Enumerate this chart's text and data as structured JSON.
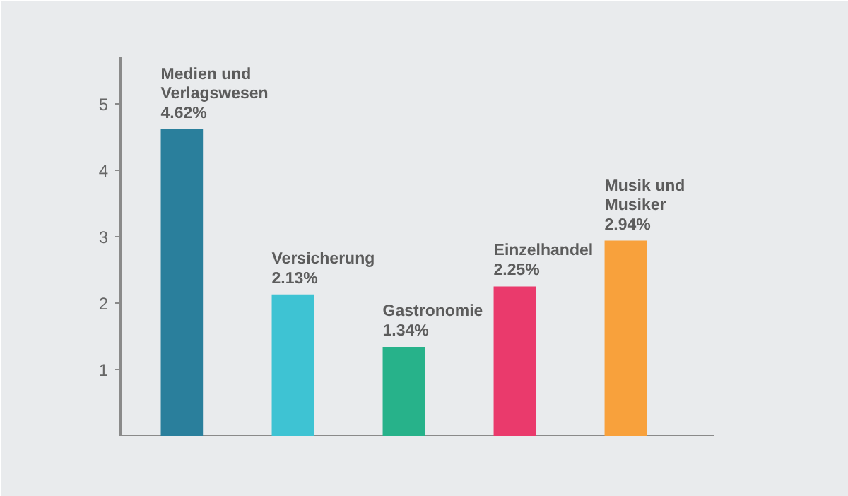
{
  "chart_data": {
    "type": "bar",
    "categories": [
      "Medien und Verlagswesen",
      "Versicherung",
      "Gastronomie",
      "Einzelhandel",
      "Musik und Musiker"
    ],
    "values": [
      4.62,
      2.13,
      1.34,
      2.25,
      2.94
    ],
    "value_labels": [
      "4.62%",
      "2.13%",
      "1.34%",
      "2.25%",
      "2.94%"
    ],
    "colors": [
      "#2a7f9c",
      "#3ec3d3",
      "#27b28a",
      "#ea3a6c",
      "#f8a13c"
    ],
    "ylim": [
      0,
      5.7
    ],
    "yticks": [
      1,
      2,
      3,
      4,
      5
    ],
    "grid": false
  }
}
